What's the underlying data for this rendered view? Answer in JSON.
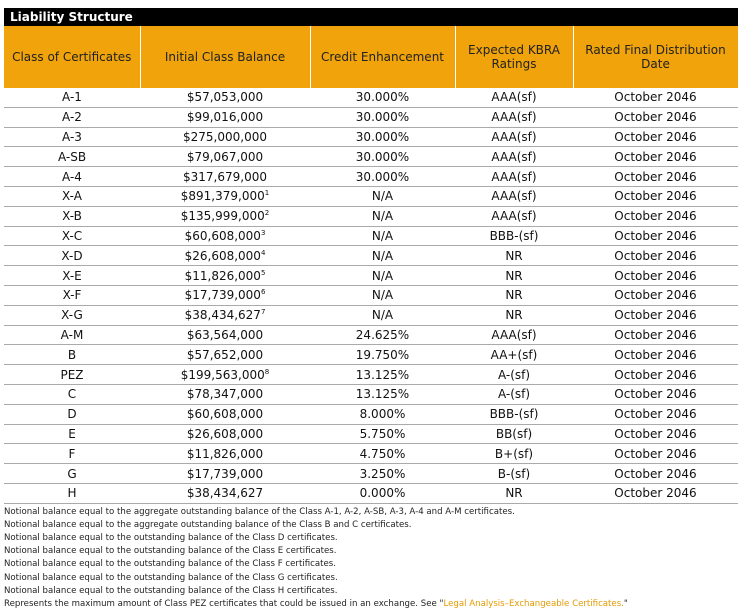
{
  "header": {
    "title": "Liability Structure"
  },
  "table": {
    "columns": [
      "Class of Certificates",
      "Initial Class Balance",
      "Credit Enhancement",
      "Expected KBRA Ratings",
      "Rated Final Distribution Date"
    ],
    "rows": [
      {
        "cells": [
          "A-1",
          "$57,053,000",
          "30.000%",
          "AAA(sf)",
          "October 2046"
        ]
      },
      {
        "cells": [
          "A-2",
          "$99,016,000",
          "30.000%",
          "AAA(sf)",
          "October 2046"
        ]
      },
      {
        "cells": [
          "A-3",
          "$275,000,000",
          "30.000%",
          "AAA(sf)",
          "October 2046"
        ]
      },
      {
        "cells": [
          "A-SB",
          "$79,067,000",
          "30.000%",
          "AAA(sf)",
          "October 2046"
        ]
      },
      {
        "cells": [
          "A-4",
          "$317,679,000",
          "30.000%",
          "AAA(sf)",
          "October 2046"
        ]
      },
      {
        "cells": [
          "X-A",
          "$891,379,000",
          "N/A",
          "AAA(sf)",
          "October 2046"
        ],
        "mark": "1"
      },
      {
        "cells": [
          "X-B",
          "$135,999,000",
          "N/A",
          "AAA(sf)",
          "October 2046"
        ],
        "mark": "2"
      },
      {
        "cells": [
          "X-C",
          "$60,608,000",
          "N/A",
          "BBB-(sf)",
          "October 2046"
        ],
        "mark": "3"
      },
      {
        "cells": [
          "X-D",
          "$26,608,000",
          "N/A",
          "NR",
          "October 2046"
        ],
        "mark": "4"
      },
      {
        "cells": [
          "X-E",
          "$11,826,000",
          "N/A",
          "NR",
          "October 2046"
        ],
        "mark": "5"
      },
      {
        "cells": [
          "X-F",
          "$17,739,000",
          "N/A",
          "NR",
          "October 2046"
        ],
        "mark": "6"
      },
      {
        "cells": [
          "X-G",
          "$38,434,627",
          "N/A",
          "NR",
          "October 2046"
        ],
        "mark": "7"
      },
      {
        "cells": [
          "A-M",
          "$63,564,000",
          "24.625%",
          "AAA(sf)",
          "October 2046"
        ]
      },
      {
        "cells": [
          "B",
          "$57,652,000",
          "19.750%",
          "AA+(sf)",
          "October 2046"
        ]
      },
      {
        "cells": [
          "PEZ",
          "$199,563,000",
          "13.125%",
          "A-(sf)",
          "October 2046"
        ],
        "mark": "8"
      },
      {
        "cells": [
          "C",
          "$78,347,000",
          "13.125%",
          "A-(sf)",
          "October 2046"
        ]
      },
      {
        "cells": [
          "D",
          "$60,608,000",
          "8.000%",
          "BBB-(sf)",
          "October 2046"
        ]
      },
      {
        "cells": [
          "E",
          "$26,608,000",
          "5.750%",
          "BB(sf)",
          "October 2046"
        ]
      },
      {
        "cells": [
          "F",
          "$11,826,000",
          "4.750%",
          "B+(sf)",
          "October 2046"
        ]
      },
      {
        "cells": [
          "G",
          "$17,739,000",
          "3.250%",
          "B-(sf)",
          "October 2046"
        ]
      },
      {
        "cells": [
          "H",
          "$38,434,627",
          "0.000%",
          "NR",
          "October 2046"
        ]
      }
    ]
  },
  "footnotes": [
    {
      "text": "Notional balance equal to the aggregate outstanding balance of the Class A-1, A-2, A-SB, A-3, A-4 and A-M certificates."
    },
    {
      "text": "Notional balance equal to the aggregate outstanding balance of the Class B and C certificates."
    },
    {
      "text": "Notional balance equal to the outstanding balance of the Class D certificates."
    },
    {
      "text": "Notional balance equal to the outstanding balance of the Class E certificates."
    },
    {
      "text": "Notional balance equal to the outstanding balance of the Class F certificates."
    },
    {
      "text": "Notional balance equal to the outstanding balance of the Class G certificates."
    },
    {
      "text": "Notional balance equal to the outstanding balance of the Class H certificates."
    },
    {
      "text": "Represents the maximum amount of Class PEZ certificates that could be issued in an exchange. See \"",
      "link": "Legal Analysis–Exchangeable Certificates.",
      "end": "\""
    }
  ]
}
